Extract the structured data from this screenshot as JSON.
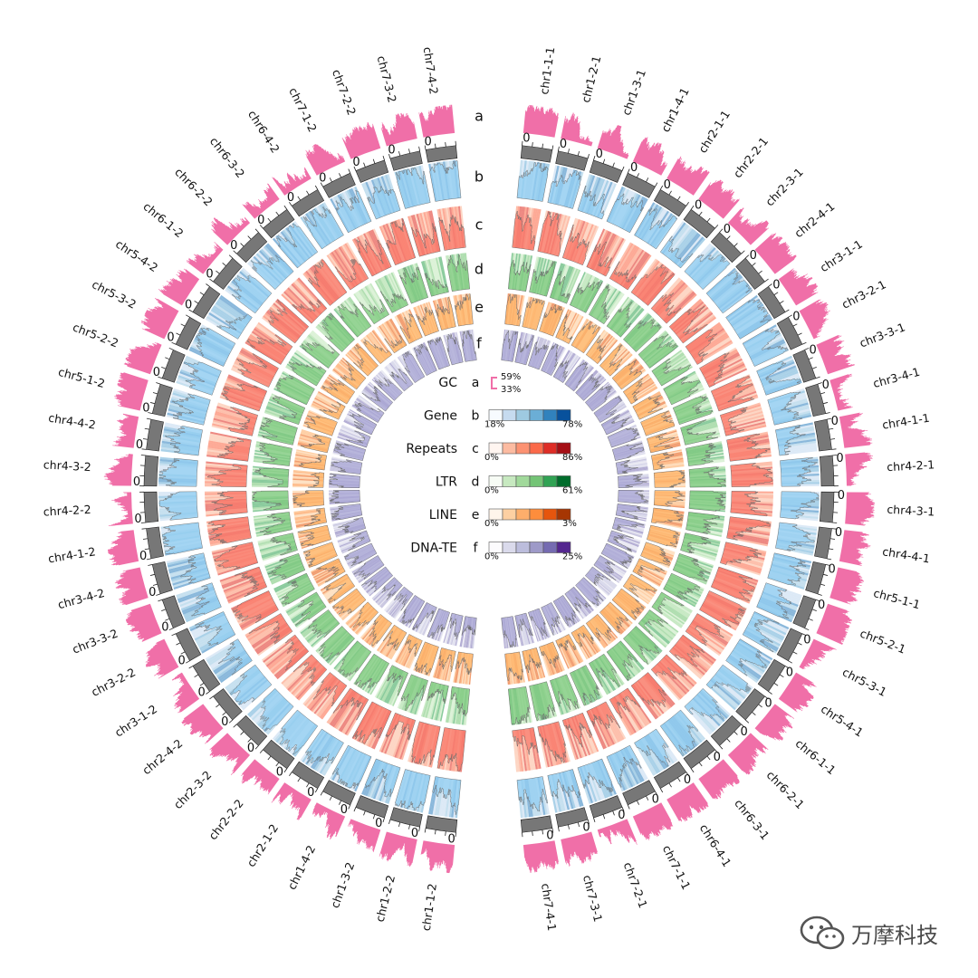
{
  "segments_right": [
    "chr1-1-1",
    "chr1-2-1",
    "chr1-3-1",
    "chr1-4-1",
    "chr2-1-1",
    "chr2-2-1",
    "chr2-3-1",
    "chr2-4-1",
    "chr3-1-1",
    "chr3-2-1",
    "chr3-3-1",
    "chr3-4-1",
    "chr4-1-1",
    "chr4-2-1",
    "chr4-3-1",
    "chr4-4-1",
    "chr5-1-1",
    "chr5-2-1",
    "chr5-3-1",
    "chr5-4-1",
    "chr6-1-1",
    "chr6-2-1",
    "chr6-3-1",
    "chr6-4-1",
    "chr7-1-1",
    "chr7-2-1",
    "chr7-3-1",
    "chr7-4-1"
  ],
  "segments_left": [
    "chr1-1-2",
    "chr1-2-2",
    "chr1-3-2",
    "chr1-4-2",
    "chr2-1-2",
    "chr2-2-2",
    "chr2-3-2",
    "chr2-4-2",
    "chr3-1-2",
    "chr3-2-2",
    "chr3-3-2",
    "chr3-4-2",
    "chr4-1-2",
    "chr4-2-2",
    "chr4-3-2",
    "chr4-4-2",
    "chr5-1-2",
    "chr5-2-2",
    "chr5-3-2",
    "chr5-4-2",
    "chr6-1-2",
    "chr6-2-2",
    "chr6-3-2",
    "chr6-4-2",
    "chr7-1-2",
    "chr7-2-2",
    "chr7-3-2",
    "chr7-4-2"
  ],
  "tracks": [
    {
      "letter": "a",
      "name": "GC",
      "color": "#f06fa8",
      "min_label": "33%",
      "max_label": "59%"
    },
    {
      "letter": "b",
      "name": "Gene",
      "colors": [
        "#f7fbff",
        "#c6dbef",
        "#9ecae1",
        "#6baed6",
        "#3182bd",
        "#08519c"
      ],
      "base": "#91cdf2",
      "min_label": "18%",
      "max_label": "78%"
    },
    {
      "letter": "c",
      "name": "Repeats",
      "colors": [
        "#fff5f0",
        "#fcbba1",
        "#fc9272",
        "#fb6a4a",
        "#de2d26",
        "#a50f15"
      ],
      "base": "#f8786a",
      "min_label": "0%",
      "max_label": "86%"
    },
    {
      "letter": "d",
      "name": "LTR",
      "colors": [
        "#f7fcf5",
        "#c7e9c0",
        "#a1d99b",
        "#74c476",
        "#31a354",
        "#006d2c"
      ],
      "base": "#7fc97f",
      "min_label": "0%",
      "max_label": "61%"
    },
    {
      "letter": "e",
      "name": "LINE",
      "colors": [
        "#fff5eb",
        "#fdd0a2",
        "#fdae6b",
        "#fd8d3c",
        "#e6550d",
        "#a63603"
      ],
      "base": "#fdb56a",
      "min_label": "0%",
      "max_label": "3%"
    },
    {
      "letter": "f",
      "name": "DNA-TE",
      "colors": [
        "#fcfbfd",
        "#dadaeb",
        "#bcbddc",
        "#9e9ac8",
        "#756bb1",
        "#54278f"
      ],
      "base": "#a8a6d4",
      "min_label": "0%",
      "max_label": "25%"
    }
  ],
  "gene_axis_label": "0",
  "watermark": {
    "text": "万摩科技",
    "icon": "wechat-icon"
  }
}
